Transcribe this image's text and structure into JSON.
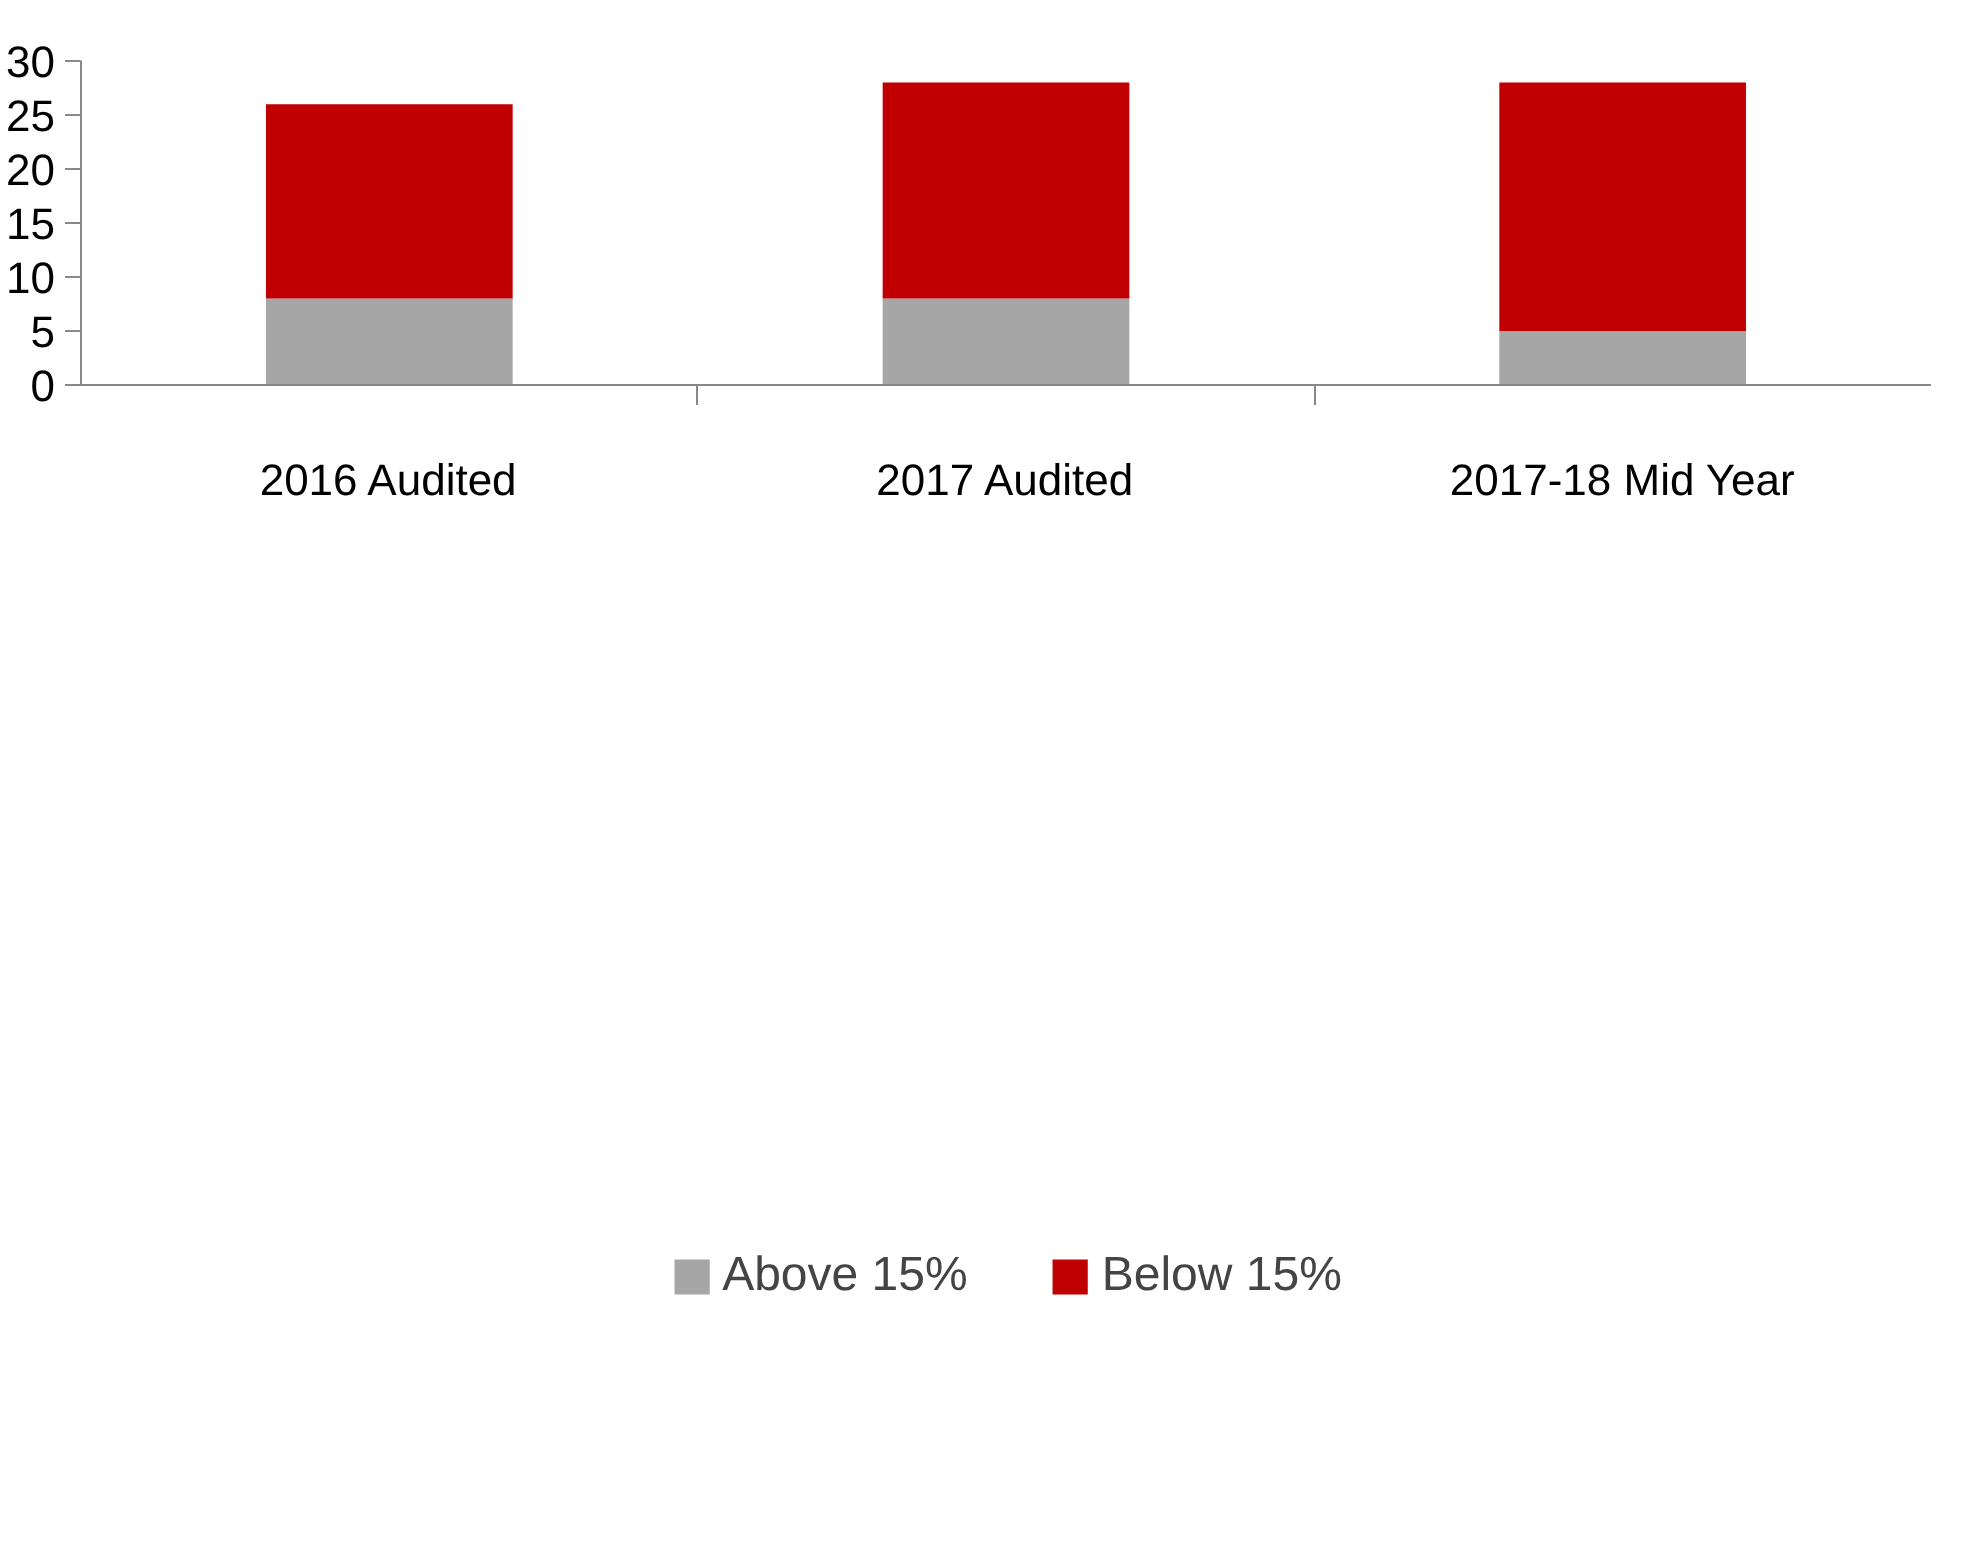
{
  "chart_data": {
    "type": "bar",
    "stacked": true,
    "categories": [
      "2016 Audited",
      "2017 Audited",
      "2017-18 Mid Year"
    ],
    "series": [
      {
        "name": "Above 15%",
        "color": "#a6a6a6",
        "values": [
          8,
          8,
          5
        ]
      },
      {
        "name": "Below 15%",
        "color": "#c00000",
        "values": [
          18,
          20,
          23
        ]
      }
    ],
    "ylim": [
      0,
      30
    ],
    "yticks": [
      0,
      5,
      10,
      15,
      20,
      25,
      30
    ],
    "grid": false,
    "legend": "bottom"
  }
}
